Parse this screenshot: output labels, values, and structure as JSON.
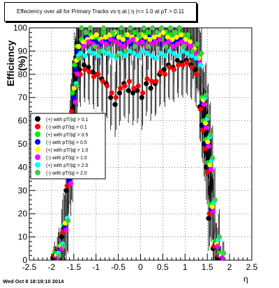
{
  "title": "Effeciency over all for Primary Tracks vs η at | η |<= 1.0 at pT > 0.11",
  "footer": "Wed Oct  8 18:19:10 2014",
  "chart_data": {
    "type": "scatter",
    "title": "Effeciency over all for Primary Tracks vs η at | η |<= 1.0 at pT > 0.11",
    "xlabel": "η",
    "ylabel": "Efficiency (%)",
    "xlim": [
      -2.5,
      2.5
    ],
    "ylim": [
      0,
      100
    ],
    "xticks": [
      "-2.5",
      "-2",
      "-1.5",
      "-1",
      "-0.5",
      "0",
      "0.5",
      "1",
      "1.5",
      "2",
      "2.5"
    ],
    "yticks": [
      "0",
      "10",
      "20",
      "30",
      "40",
      "50",
      "60",
      "70",
      "80",
      "90",
      "100"
    ],
    "grid": true,
    "legend_position": "left",
    "x": [
      -1.9,
      -1.8,
      -1.7,
      -1.6,
      -1.55,
      -1.5,
      -1.45,
      -1.4,
      -1.3,
      -1.2,
      -1.1,
      -1.0,
      -0.9,
      -0.8,
      -0.7,
      -0.6,
      -0.5,
      -0.4,
      -0.3,
      -0.2,
      -0.1,
      0.0,
      0.1,
      0.2,
      0.3,
      0.4,
      0.5,
      0.6,
      0.7,
      0.8,
      0.9,
      1.0,
      1.1,
      1.2,
      1.3,
      1.4,
      1.45,
      1.5,
      1.55,
      1.6,
      1.7,
      1.8
    ],
    "series": [
      {
        "name": "(+) with pT/|q| > 0.1",
        "color": "#000000",
        "values": [
          1,
          4,
          10,
          30,
          45,
          62,
          72,
          80,
          82,
          84,
          83,
          81,
          80,
          78,
          76,
          70,
          67,
          72,
          76,
          73,
          72,
          73,
          70,
          76,
          74,
          76,
          80,
          82,
          84,
          83,
          86,
          85,
          86,
          84,
          82,
          66,
          58,
          50,
          40,
          18,
          5,
          1
        ]
      },
      {
        "name": "(-) with pT/|q| > 0.1",
        "color": "#ff0000",
        "values": [
          2,
          5,
          12,
          32,
          48,
          64,
          74,
          81,
          80,
          82,
          81,
          79,
          80,
          77,
          75,
          72,
          70,
          74,
          75,
          77,
          74,
          75,
          72,
          78,
          77,
          77,
          81,
          80,
          83,
          82,
          84,
          84,
          85,
          83,
          80,
          65,
          56,
          48,
          38,
          20,
          6,
          2
        ]
      },
      {
        "name": "(+) with pT/|q| > 0.5",
        "color": "#00ee00",
        "values": [
          3,
          6,
          15,
          36,
          55,
          72,
          84,
          92,
          95,
          98,
          97,
          96,
          95,
          98,
          96,
          97,
          98,
          96,
          97,
          95,
          98,
          96,
          97,
          98,
          96,
          97,
          95,
          98,
          97,
          96,
          98,
          97,
          95,
          92,
          88,
          70,
          60,
          52,
          42,
          24,
          8,
          3
        ]
      },
      {
        "name": "(-) with pT/|q| > 0.5",
        "color": "#0000ff",
        "values": [
          2,
          5,
          14,
          34,
          52,
          70,
          82,
          90,
          93,
          96,
          95,
          94,
          93,
          95,
          94,
          95,
          96,
          94,
          95,
          93,
          95,
          94,
          95,
          96,
          94,
          95,
          93,
          95,
          94,
          94,
          95,
          94,
          93,
          90,
          86,
          68,
          58,
          50,
          40,
          22,
          7,
          2
        ]
      },
      {
        "name": "(+) with pT/|q| > 1.0",
        "color": "#ffff00",
        "values": [
          2,
          6,
          16,
          38,
          56,
          74,
          86,
          92,
          94,
          95,
          96,
          97,
          95,
          96,
          97,
          98,
          96,
          95,
          97,
          96,
          95,
          97,
          96,
          95,
          96,
          97,
          98,
          96,
          95,
          96,
          97,
          95,
          94,
          91,
          87,
          69,
          59,
          51,
          41,
          23,
          7,
          2
        ]
      },
      {
        "name": "(-) with pT/|q| > 1.0",
        "color": "#ff00ff",
        "values": [
          1,
          5,
          13,
          33,
          50,
          68,
          80,
          88,
          92,
          94,
          93,
          92,
          94,
          93,
          95,
          94,
          93,
          92,
          94,
          95,
          93,
          94,
          92,
          93,
          94,
          95,
          93,
          94,
          92,
          93,
          94,
          93,
          92,
          89,
          85,
          67,
          57,
          49,
          39,
          21,
          6,
          1
        ]
      },
      {
        "name": "(+) with pT/|q| > 2.0",
        "color": "#00ffff",
        "values": [
          3,
          7,
          18,
          40,
          58,
          76,
          88,
          89,
          88,
          90,
          89,
          88,
          90,
          89,
          88,
          87,
          89,
          88,
          90,
          89,
          88,
          90,
          89,
          88,
          87,
          89,
          88,
          90,
          89,
          88,
          90,
          89,
          88,
          87,
          84,
          70,
          61,
          53,
          43,
          25,
          9,
          3
        ]
      },
      {
        "name": "(-) with pT/|q| > 2.0",
        "color": "#44cc44",
        "values": [
          2,
          6,
          17,
          39,
          57,
          75,
          87,
          100,
          98,
          100,
          92,
          90,
          100,
          91,
          98,
          88,
          100,
          90,
          100,
          92,
          97,
          100,
          92,
          100,
          98,
          100,
          92,
          100,
          98,
          100,
          92,
          97,
          90,
          93,
          89,
          71,
          62,
          54,
          44,
          26,
          10,
          3
        ]
      }
    ]
  }
}
